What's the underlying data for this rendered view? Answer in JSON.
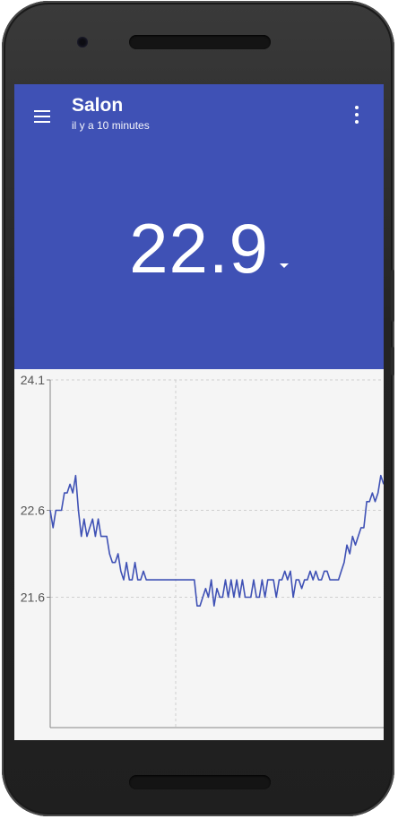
{
  "app": {
    "title": "Salon",
    "subtitle": "il y a 10 minutes"
  },
  "reading": {
    "value": "22.9"
  },
  "colors": {
    "header_bg": "#3f51b5",
    "line": "#3f51b5",
    "chart_bg": "#f5f5f5"
  },
  "icons": {
    "menu": "menu-icon",
    "more": "more-vert-icon",
    "caret": "arrow-drop-down-icon"
  },
  "chart_data": {
    "type": "line",
    "title": "",
    "xlabel": "",
    "ylabel": "",
    "ylim": [
      20.1,
      24.1
    ],
    "ytick_labels": [
      "24.1",
      "22.6",
      "21.6"
    ],
    "ytick_values": [
      24.1,
      22.6,
      21.6
    ],
    "grid": true,
    "series": [
      {
        "values": [
          22.6,
          22.4,
          22.6,
          22.6,
          22.6,
          22.8,
          22.8,
          22.9,
          22.8,
          23.0,
          22.6,
          22.3,
          22.5,
          22.3,
          22.4,
          22.5,
          22.3,
          22.5,
          22.3,
          22.3,
          22.3,
          22.1,
          22.0,
          22.0,
          22.1,
          21.9,
          21.8,
          22.0,
          21.8,
          21.8,
          22.0,
          21.8,
          21.8,
          21.9,
          21.8,
          21.8,
          21.8,
          21.8,
          21.8,
          21.8,
          21.8,
          21.8,
          21.8,
          21.8,
          21.8,
          21.8,
          21.8,
          21.8,
          21.8,
          21.8,
          21.8,
          21.8,
          21.5,
          21.5,
          21.6,
          21.7,
          21.6,
          21.8,
          21.5,
          21.7,
          21.6,
          21.6,
          21.8,
          21.6,
          21.8,
          21.6,
          21.8,
          21.6,
          21.8,
          21.6,
          21.6,
          21.6,
          21.8,
          21.6,
          21.6,
          21.8,
          21.6,
          21.8,
          21.8,
          21.8,
          21.6,
          21.8,
          21.8,
          21.9,
          21.8,
          21.9,
          21.6,
          21.8,
          21.8,
          21.7,
          21.8,
          21.8,
          21.9,
          21.8,
          21.9,
          21.8,
          21.8,
          21.9,
          21.9,
          21.8,
          21.8,
          21.8,
          21.8,
          21.9,
          22.0,
          22.2,
          22.1,
          22.3,
          22.2,
          22.3,
          22.4,
          22.4,
          22.7,
          22.7,
          22.8,
          22.7,
          22.8,
          23.0,
          22.9
        ]
      }
    ]
  }
}
